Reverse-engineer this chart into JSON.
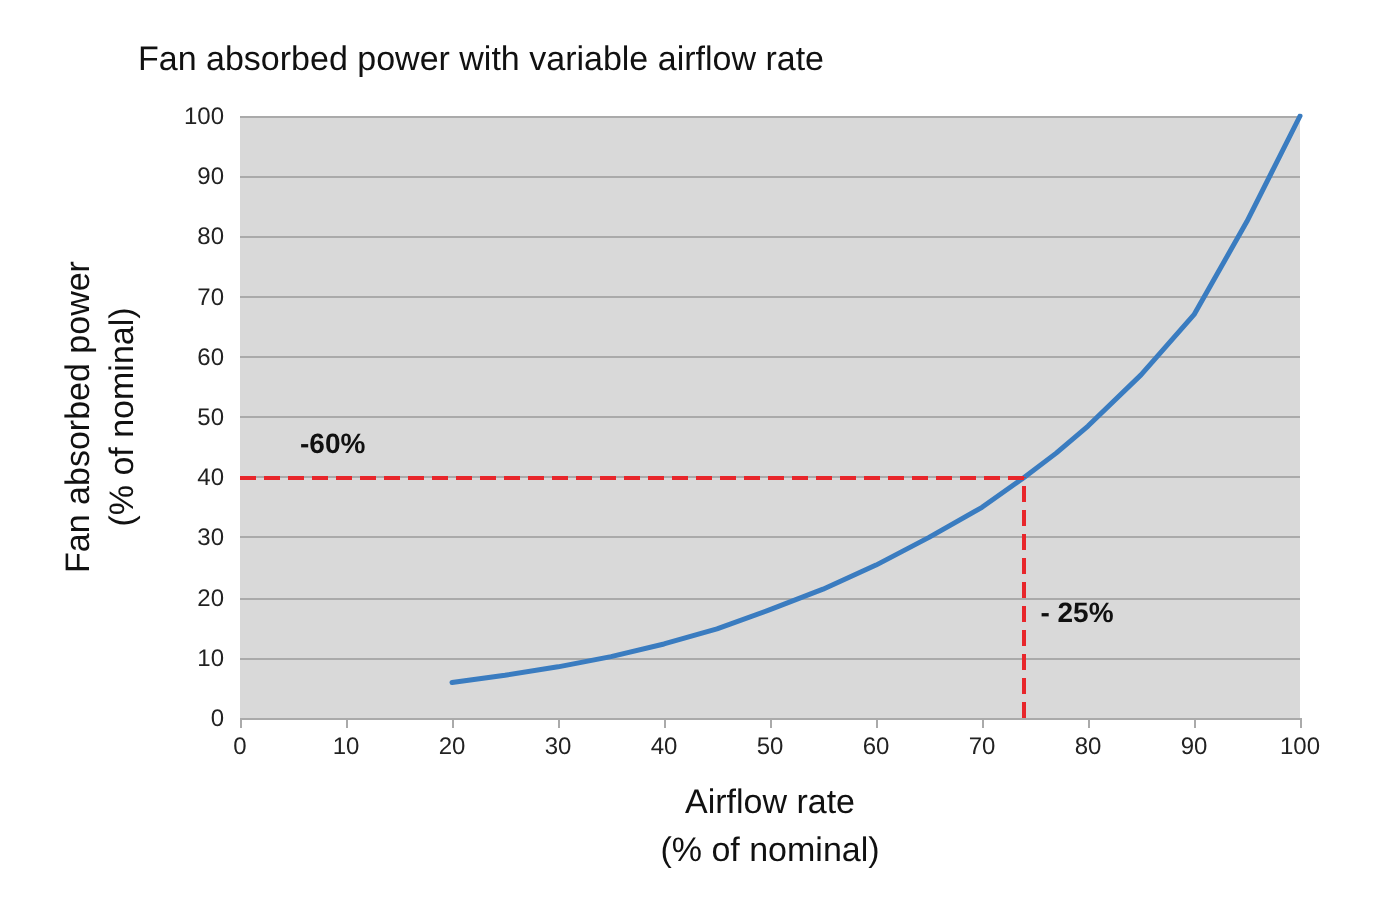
{
  "chart_data": {
    "type": "line",
    "title": "Fan absorbed power with variable airflow rate",
    "xlabel": "Airflow rate\n(% of nominal)",
    "ylabel": "Fan absorbed power\n(% of nominal)",
    "series": [
      {
        "color": "#3a7cc0",
        "x": [
          20,
          25,
          30,
          35,
          40,
          45,
          50,
          55,
          60,
          65,
          70,
          74,
          77,
          80,
          85,
          90,
          95,
          100
        ],
        "values": [
          5.9,
          7.1,
          8.5,
          10.2,
          12.3,
          14.8,
          18,
          21.4,
          25.4,
          30,
          35,
          40,
          44,
          48.5,
          57,
          67,
          82.5,
          100
        ]
      }
    ],
    "xlim": [
      0,
      100
    ],
    "xticks": [
      0,
      10,
      20,
      30,
      40,
      50,
      60,
      70,
      80,
      90,
      100
    ],
    "ylim": [
      0,
      100
    ],
    "yticks": [
      0,
      10,
      20,
      30,
      40,
      50,
      60,
      70,
      80,
      90,
      100
    ],
    "grid": "y",
    "marker": "none",
    "line_style": "solid",
    "ref_lines": [
      {
        "axis": "y",
        "value": 40,
        "color": "#e8262b",
        "line_style": "dashed"
      },
      {
        "axis": "x",
        "value": 74,
        "color": "#e8262b",
        "line_style": "dashed"
      }
    ],
    "annotations": [
      "-60%",
      "- 25%"
    ]
  }
}
